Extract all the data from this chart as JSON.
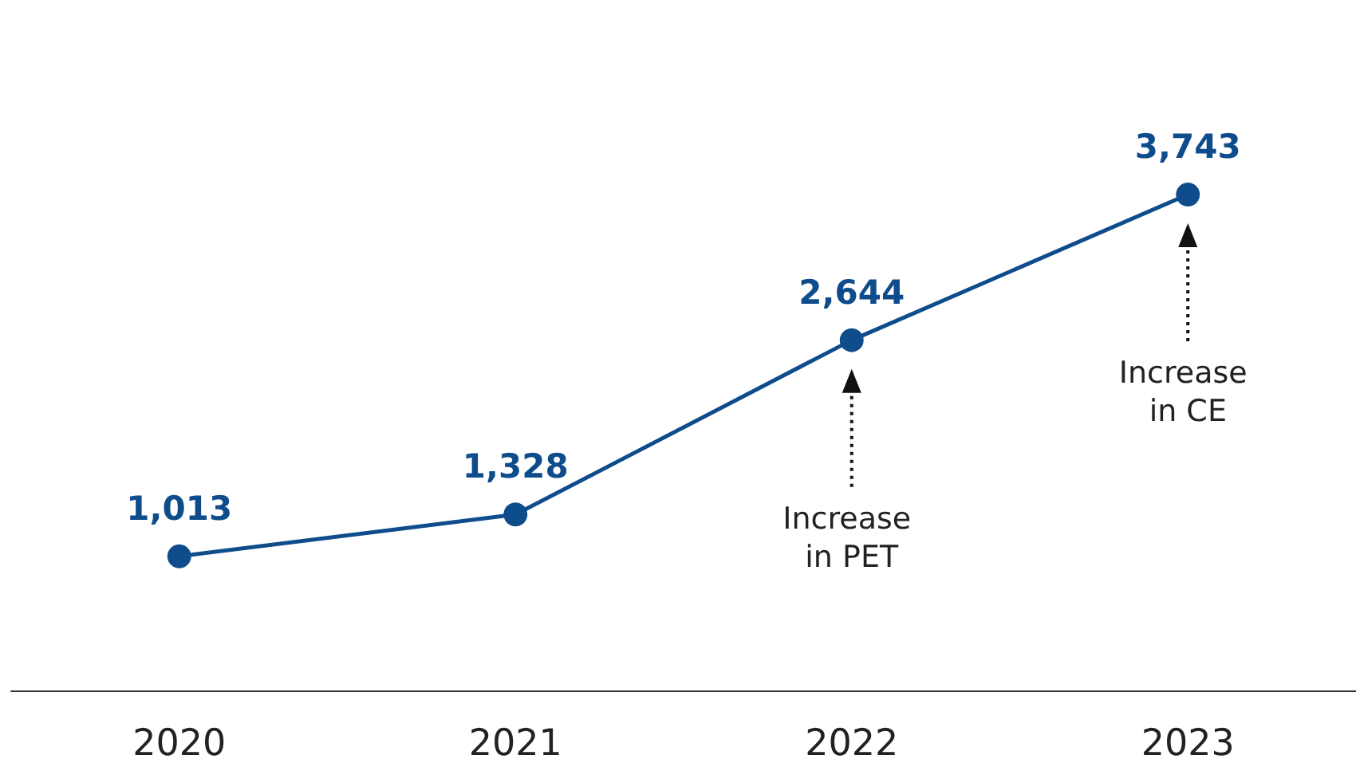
{
  "chart_data": {
    "type": "line",
    "categories": [
      "2020",
      "2021",
      "2022",
      "2023"
    ],
    "series": [
      {
        "color": "#0f4c8c",
        "values": [
          1013,
          1328,
          2644,
          3743
        ],
        "value_labels": [
          "1,013",
          "1,328",
          "2,644",
          "3,743"
        ]
      }
    ],
    "marker": "circle",
    "grid": false,
    "tick_labels": "x",
    "annotations": [
      "Increase in PET",
      "Increase in CE"
    ]
  }
}
